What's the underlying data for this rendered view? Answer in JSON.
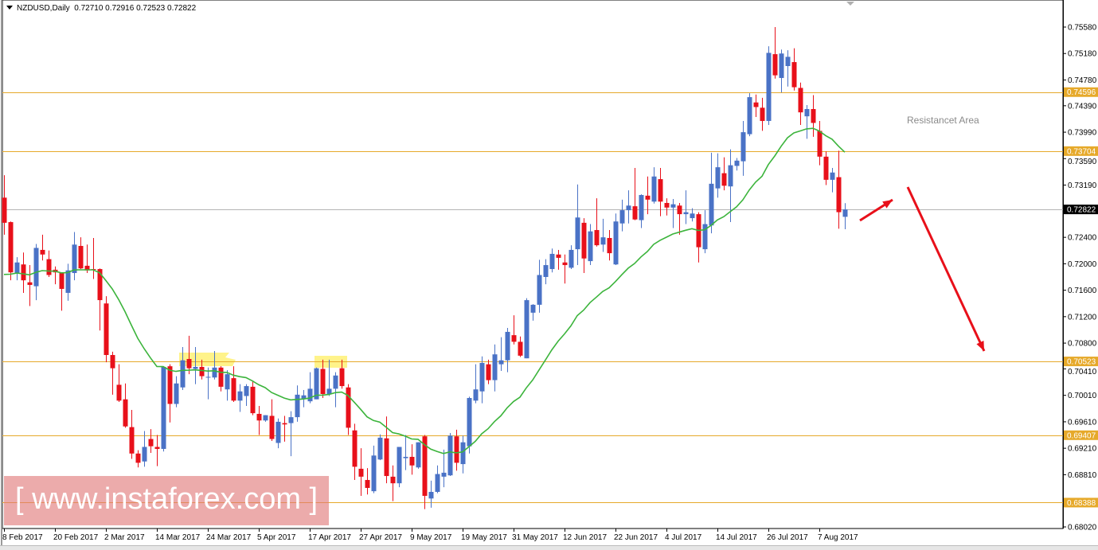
{
  "header": {
    "symbol": "NZDUSD,Daily",
    "ohlc": "0.72710 0.72916 0.72523 0.72822"
  },
  "watermark": {
    "text": "[ www.instaforex.com ]"
  },
  "annotation": {
    "text": "Resistancet Area"
  },
  "colors": {
    "bull": "#4a72c6",
    "bear": "#e8101a",
    "ma": "#3cb43c",
    "level": "#e6a92a",
    "current": "#000000",
    "arrow": "#e8101a",
    "highlight": "#fff176"
  },
  "chart_data": {
    "type": "candlestick",
    "symbol": "NZDUSD",
    "timeframe": "Daily",
    "ylim": [
      0.6795,
      0.76
    ],
    "y_ticks": [
      "0.75580",
      "0.75180",
      "0.74780",
      "0.74390",
      "0.73990",
      "0.73590",
      "0.73190",
      "0.72400",
      "0.72000",
      "0.71600",
      "0.71200",
      "0.70800",
      "0.70410",
      "0.70010",
      "0.69610",
      "0.69210",
      "0.68810",
      "0.68020"
    ],
    "x_ticks": [
      "8 Feb 2017",
      "20 Feb 2017",
      "2 Mar 2017",
      "14 Mar 2017",
      "24 Mar 2017",
      "5 Apr 2017",
      "17 Apr 2017",
      "27 Apr 2017",
      "9 May 2017",
      "19 May 2017",
      "31 May 2017",
      "12 Jun 2017",
      "22 Jun 2017",
      "4 Jul 2017",
      "14 Jul 2017",
      "26 Jul 2017",
      "7 Aug 2017"
    ],
    "levels": [
      {
        "value": 0.74596,
        "label": "0.74596"
      },
      {
        "value": 0.73704,
        "label": "0.73704"
      },
      {
        "value": 0.70523,
        "label": "0.70523"
      },
      {
        "value": 0.69407,
        "label": "0.69407"
      },
      {
        "value": 0.68388,
        "label": "0.68388"
      }
    ],
    "current_price": {
      "value": 0.72822,
      "label": "0.72822"
    },
    "ohlc_fields": [
      "open",
      "high",
      "low",
      "close"
    ],
    "candles": [
      [
        0.73,
        0.7334,
        0.7244,
        0.7262
      ],
      [
        0.7263,
        0.7264,
        0.7175,
        0.7187
      ],
      [
        0.7185,
        0.721,
        0.7175,
        0.7202
      ],
      [
        0.7199,
        0.7217,
        0.7156,
        0.7175
      ],
      [
        0.7172,
        0.7198,
        0.7136,
        0.7168
      ],
      [
        0.7166,
        0.723,
        0.7145,
        0.7224
      ],
      [
        0.7221,
        0.7244,
        0.7205,
        0.7214
      ],
      [
        0.7207,
        0.722,
        0.718,
        0.7183
      ],
      [
        0.7191,
        0.7196,
        0.7169,
        0.7187
      ],
      [
        0.7187,
        0.7187,
        0.7129,
        0.7162
      ],
      [
        0.7156,
        0.72,
        0.7144,
        0.719
      ],
      [
        0.7186,
        0.7248,
        0.7175,
        0.7229
      ],
      [
        0.7227,
        0.724,
        0.7192,
        0.7193
      ],
      [
        0.7197,
        0.7229,
        0.7186,
        0.719
      ],
      [
        0.7192,
        0.7239,
        0.7177,
        0.7191
      ],
      [
        0.7192,
        0.7193,
        0.7099,
        0.7145
      ],
      [
        0.714,
        0.7151,
        0.7051,
        0.7062
      ],
      [
        0.7062,
        0.7067,
        0.7002,
        0.7042
      ],
      [
        0.7017,
        0.7048,
        0.6991,
        0.6993
      ],
      [
        0.6995,
        0.7019,
        0.6952,
        0.6954
      ],
      [
        0.6953,
        0.6979,
        0.6905,
        0.6913
      ],
      [
        0.6913,
        0.6918,
        0.6892,
        0.6899
      ],
      [
        0.6901,
        0.6947,
        0.6893,
        0.6923
      ],
      [
        0.6935,
        0.695,
        0.6914,
        0.6924
      ],
      [
        0.6923,
        0.6941,
        0.6894,
        0.692
      ],
      [
        0.692,
        0.7045,
        0.6916,
        0.7044
      ],
      [
        0.7045,
        0.7048,
        0.696,
        0.6988
      ],
      [
        0.6988,
        0.703,
        0.6983,
        0.7019
      ],
      [
        0.7013,
        0.7074,
        0.7009,
        0.7054
      ],
      [
        0.7056,
        0.7091,
        0.7033,
        0.7042
      ],
      [
        0.7041,
        0.7074,
        0.7018,
        0.7044
      ],
      [
        0.7044,
        0.7055,
        0.7025,
        0.703
      ],
      [
        0.7028,
        0.7043,
        0.6995,
        0.7029
      ],
      [
        0.7028,
        0.7068,
        0.7025,
        0.7043
      ],
      [
        0.7043,
        0.7045,
        0.7007,
        0.7014
      ],
      [
        0.701,
        0.7039,
        0.6993,
        0.7033
      ],
      [
        0.7027,
        0.7045,
        0.6991,
        0.6993
      ],
      [
        0.6993,
        0.7018,
        0.6976,
        0.7007
      ],
      [
        0.7,
        0.7018,
        0.6985,
        0.7015
      ],
      [
        0.7014,
        0.7022,
        0.6971,
        0.6974
      ],
      [
        0.6973,
        0.6985,
        0.6941,
        0.6963
      ],
      [
        0.6963,
        0.6971,
        0.6961,
        0.6971
      ],
      [
        0.697,
        0.6995,
        0.6932,
        0.6935
      ],
      [
        0.6929,
        0.6966,
        0.6921,
        0.6961
      ],
      [
        0.6959,
        0.697,
        0.6931,
        0.6957
      ],
      [
        0.6959,
        0.6977,
        0.6909,
        0.6968
      ],
      [
        0.6968,
        0.7016,
        0.6961,
        0.7002
      ],
      [
        0.6996,
        0.7009,
        0.6983,
        0.7001
      ],
      [
        0.6992,
        0.7036,
        0.6989,
        0.7011
      ],
      [
        0.6995,
        0.7043,
        0.6995,
        0.7042
      ],
      [
        0.7041,
        0.7055,
        0.6997,
        0.7003
      ],
      [
        0.7003,
        0.7055,
        0.7,
        0.7011
      ],
      [
        0.7011,
        0.7036,
        0.6983,
        0.7031
      ],
      [
        0.7042,
        0.7055,
        0.7011,
        0.7015
      ],
      [
        0.7013,
        0.7018,
        0.6941,
        0.6952
      ],
      [
        0.6948,
        0.6958,
        0.6873,
        0.6893
      ],
      [
        0.689,
        0.6921,
        0.6849,
        0.6878
      ],
      [
        0.6873,
        0.6891,
        0.6851,
        0.6861
      ],
      [
        0.6856,
        0.6925,
        0.6853,
        0.691
      ],
      [
        0.6904,
        0.6942,
        0.6903,
        0.6937
      ],
      [
        0.6936,
        0.6969,
        0.6868,
        0.6879
      ],
      [
        0.6878,
        0.6895,
        0.6841,
        0.6868
      ],
      [
        0.6868,
        0.6923,
        0.6862,
        0.6923
      ],
      [
        0.6906,
        0.6941,
        0.6888,
        0.6908
      ],
      [
        0.6908,
        0.6927,
        0.6881,
        0.6895
      ],
      [
        0.6892,
        0.693,
        0.689,
        0.693
      ],
      [
        0.6939,
        0.6941,
        0.6829,
        0.6849
      ],
      [
        0.6845,
        0.6872,
        0.6831,
        0.6855
      ],
      [
        0.6855,
        0.6895,
        0.6853,
        0.6882
      ],
      [
        0.6878,
        0.6919,
        0.6862,
        0.6884
      ],
      [
        0.688,
        0.6944,
        0.6879,
        0.694
      ],
      [
        0.6939,
        0.6949,
        0.6887,
        0.6899
      ],
      [
        0.6897,
        0.694,
        0.6883,
        0.693
      ],
      [
        0.6924,
        0.6999,
        0.6913,
        0.6997
      ],
      [
        0.6993,
        0.7048,
        0.6989,
        0.701
      ],
      [
        0.7007,
        0.706,
        0.6989,
        0.705
      ],
      [
        0.7048,
        0.7055,
        0.7018,
        0.7024
      ],
      [
        0.7024,
        0.7078,
        0.7007,
        0.7063
      ],
      [
        0.7048,
        0.7089,
        0.7038,
        0.7054
      ],
      [
        0.7054,
        0.7103,
        0.7036,
        0.7097
      ],
      [
        0.7092,
        0.7122,
        0.7078,
        0.7082
      ],
      [
        0.7082,
        0.709,
        0.7059,
        0.7061
      ],
      [
        0.7057,
        0.7148,
        0.7057,
        0.7145
      ],
      [
        0.7126,
        0.7139,
        0.7114,
        0.7138
      ],
      [
        0.7138,
        0.7206,
        0.7126,
        0.7183
      ],
      [
        0.718,
        0.7207,
        0.7169,
        0.7198
      ],
      [
        0.7192,
        0.7223,
        0.7187,
        0.7215
      ],
      [
        0.7214,
        0.7221,
        0.7191,
        0.7209
      ],
      [
        0.7202,
        0.7214,
        0.717,
        0.7198
      ],
      [
        0.7194,
        0.7228,
        0.7192,
        0.7221
      ],
      [
        0.7222,
        0.732,
        0.7198,
        0.727
      ],
      [
        0.7262,
        0.7269,
        0.7186,
        0.7208
      ],
      [
        0.7204,
        0.726,
        0.7198,
        0.7249
      ],
      [
        0.7251,
        0.7299,
        0.7226,
        0.7228
      ],
      [
        0.7229,
        0.7268,
        0.7218,
        0.724
      ],
      [
        0.7239,
        0.7251,
        0.7205,
        0.7216
      ],
      [
        0.7199,
        0.7276,
        0.7198,
        0.7264
      ],
      [
        0.7261,
        0.7297,
        0.7249,
        0.7281
      ],
      [
        0.7281,
        0.7311,
        0.7261,
        0.7288
      ],
      [
        0.7287,
        0.7345,
        0.7266,
        0.7267
      ],
      [
        0.7266,
        0.7305,
        0.7254,
        0.7304
      ],
      [
        0.7303,
        0.7332,
        0.7275,
        0.7297
      ],
      [
        0.7294,
        0.7346,
        0.7291,
        0.7332
      ],
      [
        0.7328,
        0.7345,
        0.7272,
        0.7294
      ],
      [
        0.7292,
        0.7299,
        0.7273,
        0.7285
      ],
      [
        0.7285,
        0.7298,
        0.7254,
        0.729
      ],
      [
        0.7288,
        0.7292,
        0.7244,
        0.7275
      ],
      [
        0.7275,
        0.7311,
        0.726,
        0.7278
      ],
      [
        0.7269,
        0.7284,
        0.7264,
        0.7276
      ],
      [
        0.7275,
        0.7278,
        0.7202,
        0.7225
      ],
      [
        0.7222,
        0.7281,
        0.7216,
        0.726
      ],
      [
        0.7258,
        0.7368,
        0.7246,
        0.7321
      ],
      [
        0.7314,
        0.7367,
        0.73,
        0.7346
      ],
      [
        0.7337,
        0.7361,
        0.7311,
        0.7318
      ],
      [
        0.7317,
        0.7373,
        0.7263,
        0.7349
      ],
      [
        0.7348,
        0.736,
        0.7341,
        0.7356
      ],
      [
        0.7355,
        0.7416,
        0.7333,
        0.7399
      ],
      [
        0.7396,
        0.7458,
        0.7393,
        0.7452
      ],
      [
        0.7444,
        0.7456,
        0.7422,
        0.7437
      ],
      [
        0.7436,
        0.7451,
        0.7401,
        0.7416
      ],
      [
        0.7416,
        0.7529,
        0.741,
        0.7519
      ],
      [
        0.7517,
        0.7558,
        0.748,
        0.7485
      ],
      [
        0.7481,
        0.7524,
        0.7459,
        0.7518
      ],
      [
        0.7499,
        0.7523,
        0.7468,
        0.7513
      ],
      [
        0.7505,
        0.7526,
        0.7462,
        0.7467
      ],
      [
        0.7466,
        0.7474,
        0.741,
        0.7429
      ],
      [
        0.7423,
        0.744,
        0.7389,
        0.7434
      ],
      [
        0.7434,
        0.7455,
        0.7392,
        0.7413
      ],
      [
        0.7401,
        0.7416,
        0.7349,
        0.7362
      ],
      [
        0.7362,
        0.737,
        0.7319,
        0.7327
      ],
      [
        0.7327,
        0.7345,
        0.7308,
        0.7338
      ],
      [
        0.7331,
        0.7371,
        0.7253,
        0.7278
      ],
      [
        0.7271,
        0.72916,
        0.72523,
        0.72822
      ]
    ],
    "moving_average": {
      "shown": true,
      "color": "#3cb43c"
    },
    "grid": false
  }
}
